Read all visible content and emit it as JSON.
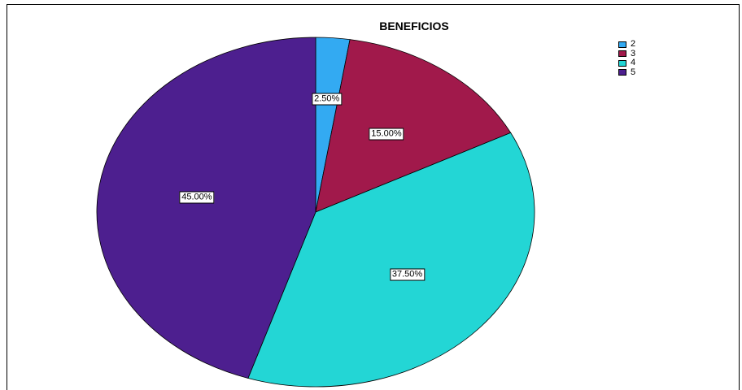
{
  "chart_data": {
    "type": "pie",
    "title": "BENEFICIOS",
    "categories": [
      "2",
      "3",
      "4",
      "5"
    ],
    "values": [
      2.5,
      15.0,
      37.5,
      45.0
    ],
    "labels": [
      "2.50%",
      "15.00%",
      "37.50%",
      "45.00%"
    ],
    "colors": [
      "#33aaf2",
      "#a1194b",
      "#23d6d5",
      "#4d1f8f"
    ],
    "legend": {
      "placement": "top-right",
      "entries": [
        "2",
        "3",
        "4",
        "5"
      ]
    }
  }
}
